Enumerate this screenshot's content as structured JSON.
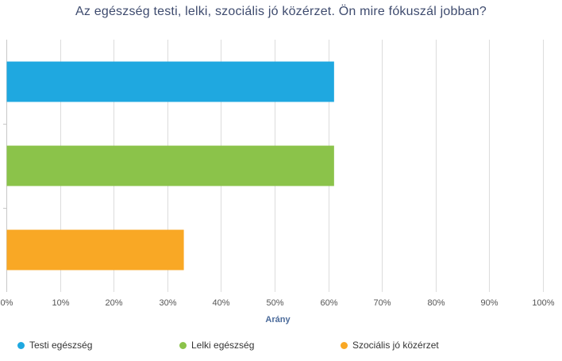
{
  "chart_data": {
    "type": "bar",
    "orientation": "horizontal",
    "title": "Az egészség testi, lelki, szociális jó közérzet. Ön mire fókuszál jobban?",
    "xlabel": "Arány",
    "ylabel": "",
    "xlim": [
      0,
      100
    ],
    "x_ticks": [
      "0%",
      "10%",
      "20%",
      "30%",
      "40%",
      "50%",
      "60%",
      "70%",
      "80%",
      "90%",
      "100%"
    ],
    "grid": true,
    "legend_position": "bottom",
    "series": [
      {
        "name": "Testi egészség",
        "value": 61,
        "color": "#1fa8e0"
      },
      {
        "name": "Lelki egészség",
        "value": 61,
        "color": "#8bc34a"
      },
      {
        "name": "Szociális jó közérzet",
        "value": 33,
        "color": "#f9a825"
      }
    ]
  }
}
